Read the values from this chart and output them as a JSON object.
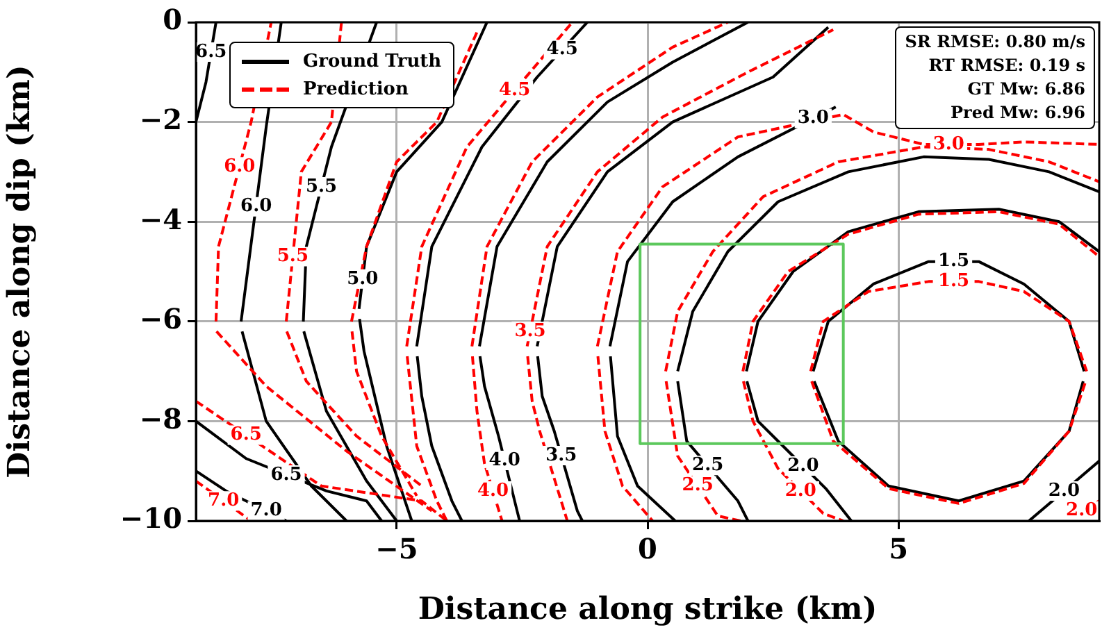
{
  "chart_data": {
    "type": "line",
    "xlabel": "Distance along strike (km)",
    "ylabel": "Distance along dip (km)",
    "xlim": [
      -9,
      9
    ],
    "ylim": [
      -10,
      0
    ],
    "xticks": [
      {
        "value": -5,
        "label": "−5"
      },
      0,
      5
    ],
    "yticks": [
      {
        "value": -10,
        "label": "−10"
      },
      {
        "value": -8,
        "label": "−8"
      },
      {
        "value": -6,
        "label": "−6"
      },
      {
        "value": -4,
        "label": "−4"
      },
      {
        "value": -2,
        "label": "−2"
      },
      0
    ],
    "grid": true,
    "legend": "top left",
    "marker": "none",
    "series": [
      {
        "name": "Ground Truth",
        "color": "#000000",
        "line_style": "solid",
        "x": [
          3.3,
          3.6,
          4.5,
          5.6,
          6.6,
          7.5,
          8.4,
          8.7
        ],
        "values": [
          -7.0,
          -6.0,
          -5.25,
          -4.8,
          -4.8,
          -5.25,
          -6.0,
          -7.0
        ]
      },
      {
        "color": "#000000",
        "line_style": "solid",
        "x": [
          3.32,
          3.8,
          4.8,
          6.2,
          7.5,
          8.4,
          8.68
        ],
        "values": [
          -7.2,
          -8.4,
          -9.3,
          -9.6,
          -9.2,
          -8.2,
          -7.2
        ]
      },
      {
        "color": "#000000",
        "line_style": "solid",
        "x": [
          1.97,
          2.2,
          2.9,
          4,
          5.4,
          7,
          8.2,
          9
        ],
        "values": [
          -7.0,
          -6.0,
          -5.0,
          -4.2,
          -3.8,
          -3.75,
          -4.0,
          -4.6
        ]
      },
      {
        "color": "#000000",
        "line_style": "solid",
        "x": [
          1.98,
          2.2,
          2.65,
          3.55,
          4.06
        ],
        "values": [
          -7.2,
          -8.0,
          -8.45,
          -9.35,
          -10
        ]
      },
      {
        "color": "#000000",
        "line_style": "solid",
        "x": [
          7.6,
          9
        ],
        "values": [
          -10,
          -8.8
        ]
      },
      {
        "color": "#000000",
        "line_style": "solid",
        "x": [
          0.6,
          0.78,
          1.8,
          2.0
        ],
        "values": [
          -7.2,
          -8.4,
          -9.6,
          -10
        ]
      },
      {
        "color": "#000000",
        "line_style": "solid",
        "x": [
          0.6,
          0.9,
          1.6,
          2.6,
          4,
          5.5,
          6.8,
          8,
          9
        ],
        "values": [
          -7,
          -5.8,
          -4.6,
          -3.6,
          -3.0,
          -2.7,
          -2.75,
          -3.0,
          -3.4
        ]
      },
      {
        "color": "#000000",
        "line_style": "solid",
        "x": [
          -0.74,
          -0.6,
          -0.2,
          0.55
        ],
        "values": [
          -6.7,
          -8.3,
          -9.3,
          -10
        ]
      },
      {
        "color": "#000000",
        "line_style": "solid",
        "x": [
          -0.75,
          -0.4,
          0.5,
          1.8,
          3.75
        ],
        "values": [
          -6.5,
          -4.8,
          -3.6,
          -2.7,
          -1.7
        ]
      },
      {
        "color": "#000000",
        "line_style": "solid",
        "x": [
          -2.19,
          -2.1,
          -1.86,
          -1.4,
          -1.3
        ],
        "values": [
          -6.7,
          -7.5,
          -8.2,
          -9.8,
          -10
        ]
      },
      {
        "color": "#000000",
        "line_style": "solid",
        "x": [
          -2.2,
          -1.8,
          -0.8,
          0.5,
          2.5,
          3.6
        ],
        "values": [
          -6.5,
          -4.5,
          -3.0,
          -2.0,
          -1.1,
          -0.1
        ]
      },
      {
        "color": "#000000",
        "line_style": "solid",
        "x": [
          -3.34,
          -3.25,
          -2.97,
          -2.6,
          -2.55
        ],
        "values": [
          -6.7,
          -7.3,
          -8.3,
          -9.8,
          -10
        ]
      },
      {
        "color": "#000000",
        "line_style": "solid",
        "x": [
          -3.35,
          -3.0,
          -2.0,
          -0.8,
          0.5,
          2
        ],
        "values": [
          -6.5,
          -4.5,
          -2.8,
          -1.6,
          -0.8,
          0
        ]
      },
      {
        "color": "#000000",
        "line_style": "solid",
        "x": [
          -4.59,
          -4.5,
          -4.3,
          -3.9,
          -3.7
        ],
        "values": [
          -6.7,
          -7.5,
          -8.5,
          -9.6,
          -10
        ]
      },
      {
        "color": "#000000",
        "line_style": "solid",
        "x": [
          -4.6,
          -4.3,
          -3.3,
          -2.2,
          -1.2
        ],
        "values": [
          -6.5,
          -4.5,
          -2.5,
          -1.1,
          0
        ]
      },
      {
        "color": "#000000",
        "line_style": "solid",
        "x": [
          -5.74,
          -5.65,
          -5.2,
          -4.7
        ],
        "values": [
          -5.95,
          -6.6,
          -8.5,
          -10
        ]
      },
      {
        "color": "#000000",
        "line_style": "solid",
        "x": [
          -5.75,
          -5.6,
          -5.0,
          -4.1,
          -3.2
        ],
        "values": [
          -5.75,
          -4.5,
          -3,
          -2.0,
          0
        ]
      },
      {
        "color": "#000000",
        "line_style": "solid",
        "x": [
          -6.85,
          -6.4,
          -5.6,
          -5
        ],
        "values": [
          -6.2,
          -7.8,
          -9.2,
          -10
        ]
      },
      {
        "color": "#000000",
        "line_style": "solid",
        "x": [
          -6.86,
          -6.8,
          -6.3,
          -5.4
        ],
        "values": [
          -6,
          -4.5,
          -2.5,
          0
        ]
      },
      {
        "color": "#000000",
        "line_style": "solid",
        "x": [
          -8.08,
          -7.6,
          -6.7,
          -6.0
        ],
        "values": [
          -6.2,
          -8,
          -9.3,
          -10
        ]
      },
      {
        "color": "#000000",
        "line_style": "solid",
        "x": [
          -8.1,
          -7.6,
          -7.3
        ],
        "values": [
          -6,
          -2.1,
          0
        ]
      },
      {
        "color": "#000000",
        "line_style": "solid",
        "x": [
          -9,
          -8.0,
          -6.4,
          -5.6,
          -5.3
        ],
        "values": [
          -8.0,
          -8.75,
          -9.4,
          -9.6,
          -10
        ]
      },
      {
        "color": "#000000",
        "line_style": "solid",
        "x": [
          -9,
          -8.8,
          -8.6
        ],
        "values": [
          -2,
          -1.2,
          0
        ]
      },
      {
        "color": "#000000",
        "line_style": "solid",
        "x": [
          -9,
          -8.4,
          -7.2
        ],
        "values": [
          -9.0,
          -9.4,
          -10
        ]
      },
      {
        "name": "Prediction",
        "color": "#ff0000",
        "line_style": "dashed",
        "x": [
          3.25,
          3.5,
          4.4,
          5.6,
          6.6,
          7.5,
          8.4,
          8.75
        ],
        "values": [
          -7.0,
          -6.0,
          -5.4,
          -5.2,
          -5.2,
          -5.4,
          -6.0,
          -7.0
        ]
      },
      {
        "color": "#ff0000",
        "line_style": "dashed",
        "x": [
          3.27,
          3.7,
          4.8,
          6.2,
          7.5,
          8.4,
          8.73
        ],
        "values": [
          -7.2,
          -8.4,
          -9.35,
          -9.65,
          -9.25,
          -8.2,
          -7.2
        ]
      },
      {
        "color": "#ff0000",
        "line_style": "dashed",
        "x": [
          1.9,
          2.1,
          2.8,
          4,
          5.4,
          7,
          8.2,
          9
        ],
        "values": [
          -7.0,
          -6.0,
          -5.0,
          -4.25,
          -3.85,
          -3.8,
          -4.05,
          -4.7
        ]
      },
      {
        "color": "#ff0000",
        "line_style": "dashed",
        "x": [
          1.91,
          2.1,
          2.6,
          3.5,
          3.9
        ],
        "values": [
          -7.2,
          -8.0,
          -8.95,
          -9.85,
          -10
        ]
      },
      {
        "color": "#ff0000",
        "line_style": "dashed",
        "x": [
          8.3,
          9
        ],
        "values": [
          -10,
          -9.6
        ]
      },
      {
        "color": "#ff0000",
        "line_style": "dashed",
        "x": [
          0.37,
          0.6,
          1.4,
          1.85
        ],
        "values": [
          -7.2,
          -8.7,
          -9.9,
          -10
        ]
      },
      {
        "color": "#ff0000",
        "line_style": "dashed",
        "x": [
          0.36,
          0.6,
          1.3,
          2.3,
          3.8,
          5.5,
          6.8,
          8,
          9
        ],
        "values": [
          -7,
          -5.8,
          -4.6,
          -3.5,
          -2.8,
          -2.5,
          -2.55,
          -2.8,
          -3.2
        ]
      },
      {
        "color": "#ff0000",
        "line_style": "dashed",
        "x": [
          -0.99,
          -0.85,
          -0.5,
          0.1
        ],
        "values": [
          -6.7,
          -8.2,
          -9.3,
          -10
        ]
      },
      {
        "color": "#ff0000",
        "line_style": "dashed",
        "x": [
          -1.0,
          -0.6,
          0.3,
          1.8,
          3.9,
          4.5,
          5.5,
          6.6,
          7.5,
          9
        ],
        "values": [
          -6.5,
          -4.6,
          -3.3,
          -2.3,
          -1.85,
          -2.2,
          -2.45,
          -2.45,
          -2.4,
          -2.45
        ]
      },
      {
        "color": "#ff0000",
        "line_style": "dashed",
        "x": [
          -2.39,
          -2.3,
          -2.15,
          -1.6
        ],
        "values": [
          -6.7,
          -7.6,
          -8.2,
          -10
        ]
      },
      {
        "color": "#ff0000",
        "line_style": "dashed",
        "x": [
          -2.4,
          -2.0,
          -1.0,
          0.3,
          2,
          3.7
        ],
        "values": [
          -6.5,
          -4.5,
          -3.0,
          -1.9,
          -1.0,
          -0.15
        ]
      },
      {
        "color": "#ff0000",
        "line_style": "dashed",
        "x": [
          -3.49,
          -3.4,
          -3.25,
          -2.9
        ],
        "values": [
          -6.7,
          -7.8,
          -8.85,
          -10
        ]
      },
      {
        "color": "#ff0000",
        "line_style": "dashed",
        "x": [
          -3.5,
          -3.2,
          -2.3,
          -1.0,
          0.5,
          1.6
        ],
        "values": [
          -6.5,
          -4.5,
          -2.8,
          -1.5,
          -0.5,
          0
        ]
      },
      {
        "color": "#ff0000",
        "line_style": "dashed",
        "x": [
          -4.79,
          -4.6,
          -4.2,
          -4.0
        ],
        "values": [
          -6.7,
          -8.5,
          -9.6,
          -10
        ]
      },
      {
        "color": "#ff0000",
        "line_style": "dashed",
        "x": [
          -4.8,
          -4.5,
          -3.6,
          -1.5
        ],
        "values": [
          -6.5,
          -4.5,
          -2.5,
          0
        ]
      },
      {
        "color": "#ff0000",
        "line_style": "dashed",
        "x": [
          -5.89,
          -5.8,
          -5.3,
          -4.6
        ],
        "values": [
          -6.2,
          -7,
          -8.3,
          -9.5
        ]
      },
      {
        "color": "#ff0000",
        "line_style": "dashed",
        "x": [
          -5.9,
          -5.6,
          -5.0,
          -4.2,
          -3.4
        ],
        "values": [
          -6,
          -4.5,
          -2.8,
          -2.0,
          -0.2
        ]
      },
      {
        "color": "#ff0000",
        "line_style": "dashed",
        "x": [
          -7.19,
          -6.8,
          -5.8,
          -4.5
        ],
        "values": [
          -6.2,
          -7.2,
          -8.3,
          -9.3
        ]
      },
      {
        "color": "#ff0000",
        "line_style": "dashed",
        "x": [
          -7.2,
          -6.9,
          -6.3,
          -6.1
        ],
        "values": [
          -6,
          -3,
          -2.0,
          0
        ]
      },
      {
        "color": "#ff0000",
        "line_style": "dashed",
        "x": [
          -8.59,
          -7.6,
          -6,
          -4.3
        ],
        "values": [
          -6.2,
          -7.3,
          -8.6,
          -9.8
        ]
      },
      {
        "color": "#ff0000",
        "line_style": "dashed",
        "x": [
          -8.6,
          -8.55,
          -7.9,
          -7.5
        ],
        "values": [
          -6,
          -4.5,
          -2.0,
          0
        ]
      },
      {
        "color": "#ff0000",
        "line_style": "dashed",
        "x": [
          -9,
          -6.5,
          -4.5,
          -4.0
        ],
        "values": [
          -7.6,
          -9.3,
          -9.6,
          -10
        ]
      },
      {
        "color": "#ff0000",
        "line_style": "dashed",
        "x": [
          -9,
          -7.9
        ],
        "values": [
          -9.2,
          -10
        ]
      },
      {
        "color": "#5cc85c",
        "line_style": "solid",
        "x": [
          -0.15,
          3.9
        ],
        "values": [
          -4.45,
          -4.45
        ]
      },
      {
        "color": "#5cc85c",
        "line_style": "solid",
        "x": [
          -0.15,
          3.9
        ],
        "values": [
          -8.45,
          -8.45
        ]
      },
      {
        "color": "#5cc85c",
        "line_style": "solid",
        "x": [
          -0.15,
          -0.15
        ],
        "values": [
          -4.45,
          -8.45
        ]
      },
      {
        "color": "#5cc85c",
        "line_style": "solid",
        "x": [
          3.9,
          3.9
        ],
        "values": [
          -4.45,
          -8.45
        ]
      }
    ],
    "annotations": [
      "SR RMSE: 0.80 m/s",
      "RT RMSE: 0.19 s",
      "GT Mw: 6.86",
      "Pred Mw: 6.96",
      {
        "text": "1.5",
        "x": 6.1,
        "y": -4.8
      },
      {
        "text": "1.5",
        "x": 6.1,
        "y": -5.2
      },
      {
        "text": "2.0",
        "x": 3.1,
        "y": -8.9
      },
      {
        "text": "2.0",
        "x": 3.05,
        "y": -9.4
      },
      {
        "text": "2.0",
        "x": 8.3,
        "y": -9.4
      },
      {
        "text": "2.0",
        "x": 8.65,
        "y": -9.8
      },
      {
        "text": "2.5",
        "x": 1.2,
        "y": -8.89
      },
      {
        "text": "2.5",
        "x": 1.0,
        "y": -9.3
      },
      {
        "text": "3.0",
        "x": 3.3,
        "y": -1.93
      },
      {
        "text": "3.0",
        "x": 6.0,
        "y": -2.45
      },
      {
        "text": "3.5",
        "x": -1.72,
        "y": -8.69
      },
      {
        "text": "3.5",
        "x": -2.34,
        "y": -6.2
      },
      {
        "text": "4.0",
        "x": -2.85,
        "y": -8.79
      },
      {
        "text": "4.0",
        "x": -3.08,
        "y": -9.4
      },
      {
        "text": "4.5",
        "x": -1.7,
        "y": -0.55
      },
      {
        "text": "4.5",
        "x": -2.65,
        "y": -1.37
      },
      {
        "text": "5.0",
        "x": -5.68,
        "y": -5.15
      },
      {
        "text": "5.5",
        "x": -6.5,
        "y": -3.3
      },
      {
        "text": "5.5",
        "x": -7.07,
        "y": -4.7
      },
      {
        "text": "6.0",
        "x": -7.8,
        "y": -3.7
      },
      {
        "text": "6.0",
        "x": -8.13,
        "y": -2.9
      },
      {
        "text": "6.5",
        "x": -7.2,
        "y": -9.08
      },
      {
        "text": "6.5",
        "x": -8.7,
        "y": -0.6
      },
      {
        "text": "6.5",
        "x": -8.0,
        "y": -8.28
      },
      {
        "text": "7.0",
        "x": -7.6,
        "y": -9.8
      },
      {
        "text": "7.0",
        "x": -8.45,
        "y": -9.6
      }
    ]
  }
}
